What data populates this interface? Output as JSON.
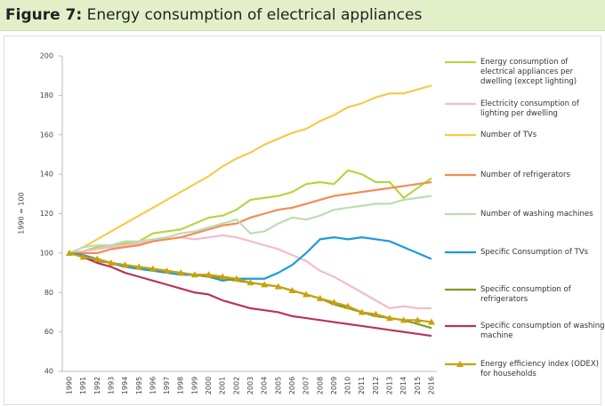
{
  "chart_data": {
    "type": "line",
    "figure_label": "Figure 7:",
    "title": "Energy consumption of electrical appliances",
    "ylabel": "1990 = 100",
    "categories": [
      "1990",
      "1991",
      "1992",
      "1993",
      "1994",
      "1995",
      "1996",
      "1997",
      "1998",
      "1999",
      "2000",
      "2001",
      "2002",
      "2003",
      "2004",
      "2005",
      "2006",
      "2007",
      "2008",
      "2009",
      "2010",
      "2011",
      "2012",
      "2013",
      "2014",
      "2015",
      "2016"
    ],
    "ylim": [
      40,
      200
    ],
    "yticks": [
      40,
      60,
      80,
      100,
      120,
      140,
      160,
      180,
      200
    ],
    "series": [
      {
        "name": "Energy consumption of electrical appliances per dwelling (except lighting)",
        "color": "#b9d443",
        "values": [
          100,
          101,
          103,
          104,
          105,
          106,
          110,
          111,
          112,
          115,
          118,
          119,
          122,
          127,
          128,
          129,
          131,
          135,
          136,
          135,
          142,
          140,
          136,
          136,
          128,
          133,
          138
        ]
      },
      {
        "name": "Electricity consumption of lighting per dwelling",
        "color": "#f2bccb",
        "values": [
          100,
          101,
          102,
          103,
          104,
          105,
          106,
          107,
          108,
          107,
          108,
          109,
          108,
          106,
          104,
          102,
          99,
          96,
          91,
          88,
          84,
          80,
          76,
          72,
          73,
          72,
          72
        ]
      },
      {
        "name": "Number of TVs",
        "color": "#f6cb4a",
        "values": [
          100,
          103,
          107,
          111,
          115,
          119,
          123,
          127,
          131,
          135,
          139,
          144,
          148,
          151,
          155,
          158,
          161,
          163,
          167,
          170,
          174,
          176,
          179,
          181,
          181,
          183,
          185
        ]
      },
      {
        "name": "Number of refrigerators",
        "color": "#f28c52",
        "values": [
          100,
          100,
          100,
          102,
          103,
          104,
          106,
          107,
          108,
          110,
          112,
          114,
          115,
          118,
          120,
          122,
          123,
          125,
          127,
          129,
          130,
          131,
          132,
          133,
          134,
          135,
          136
        ]
      },
      {
        "name": "Number of washing machines",
        "color": "#bcdcb4",
        "values": [
          100,
          103,
          104,
          104,
          106,
          106,
          107,
          108,
          110,
          111,
          113,
          115,
          117,
          110,
          111,
          115,
          118,
          117,
          119,
          122,
          123,
          124,
          125,
          125,
          127,
          128,
          129
        ]
      },
      {
        "name": "Specific Consumption of TVs",
        "color": "#1b9bd7",
        "values": [
          100,
          99,
          97,
          95,
          93,
          92,
          91,
          90,
          89,
          89,
          88,
          86,
          87,
          87,
          87,
          90,
          94,
          100,
          107,
          108,
          107,
          108,
          107,
          106,
          103,
          100,
          97
        ]
      },
      {
        "name": "Specific consumption of refrigerators",
        "color": "#7d9b1f",
        "values": [
          100,
          98,
          96,
          95,
          94,
          93,
          92,
          91,
          90,
          89,
          88,
          87,
          86,
          85,
          84,
          83,
          81,
          79,
          77,
          74,
          72,
          70,
          68,
          67,
          66,
          64,
          62
        ]
      },
      {
        "name": "Specific consumption of washing machine",
        "color": "#b8345c",
        "values": [
          100,
          98,
          95,
          93,
          90,
          88,
          86,
          84,
          82,
          80,
          79,
          76,
          74,
          72,
          71,
          70,
          68,
          67,
          66,
          65,
          64,
          63,
          62,
          61,
          60,
          59,
          58
        ]
      },
      {
        "name": "Energy efficiency index (ODEX) for households",
        "color": "#c9a10a",
        "marker": "triangle",
        "values": [
          100,
          98,
          97,
          95,
          94,
          93,
          92,
          91,
          90,
          89,
          89,
          88,
          87,
          85,
          84,
          83,
          81,
          79,
          77,
          75,
          73,
          70,
          69,
          67,
          66,
          66,
          65
        ]
      }
    ]
  }
}
